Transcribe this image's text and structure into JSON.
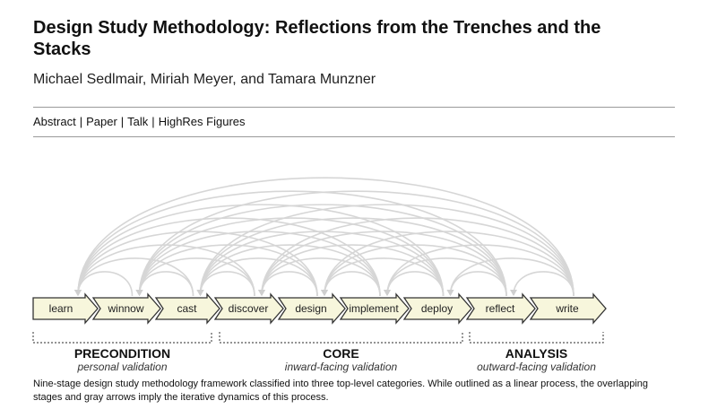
{
  "header": {
    "title": "Design Study Methodology: Reflections from the Trenches and the Stacks",
    "authors": "Michael Sedlmair, Miriah Meyer, and Tamara Munzner"
  },
  "nav": {
    "links": [
      "Abstract",
      "Paper",
      "Talk",
      "HighRes Figures"
    ],
    "separator": "|"
  },
  "figure": {
    "stages": [
      "learn",
      "winnow",
      "cast",
      "discover",
      "design",
      "implement",
      "deploy",
      "reflect",
      "write"
    ],
    "categories": [
      {
        "name": "PRECONDITION",
        "subtitle": "personal validation"
      },
      {
        "name": "CORE",
        "subtitle": "inward-facing validation"
      },
      {
        "name": "ANALYSIS",
        "subtitle": "outward-facing validation"
      }
    ],
    "colors": {
      "stage_fill": "#f7f6dc",
      "stage_stroke": "#333333",
      "arc_stroke": "#d6d6d6",
      "bracket_stroke": "#555555"
    }
  },
  "caption": "Nine-stage design study methodology framework classified into three top-level categories. While outlined as a linear process, the overlapping stages and gray arrows imply the iterative dynamics of this process."
}
